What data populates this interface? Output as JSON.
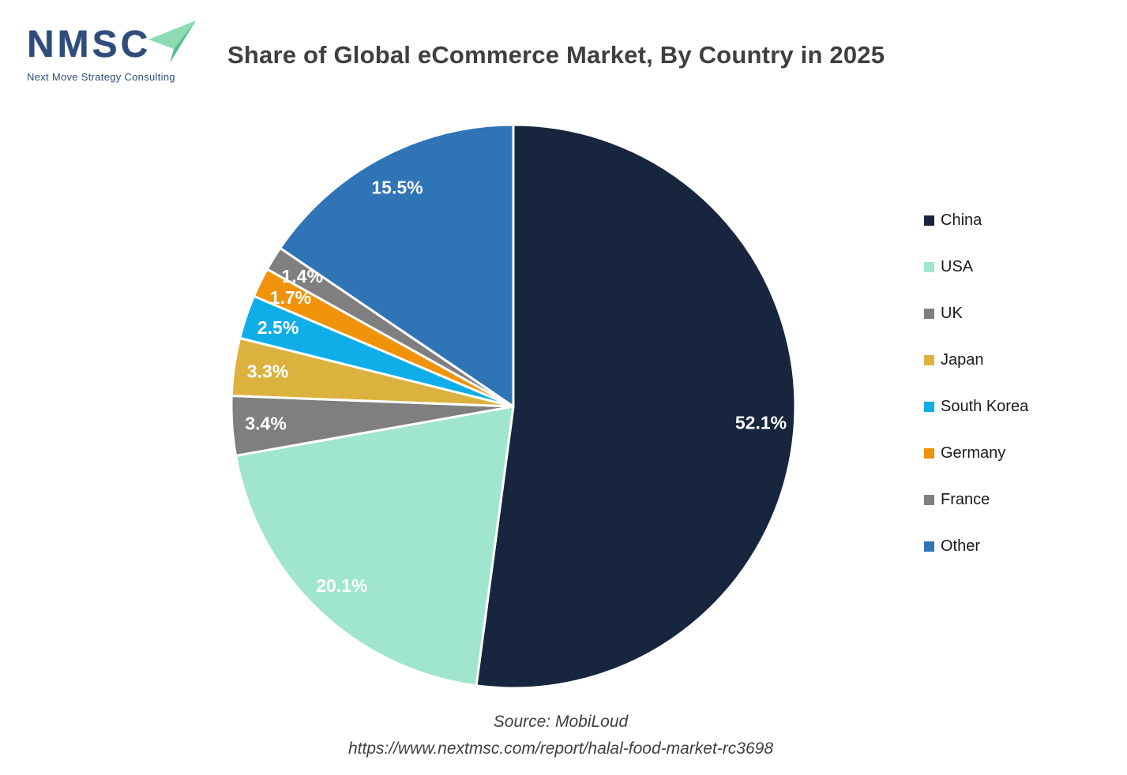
{
  "logo": {
    "acronym": "NMSC",
    "tagline": "Next Move Strategy Consulting",
    "brand_navy": "#2E4C7C",
    "arrow_green_light": "#8EDBB3",
    "arrow_green_dark": "#58BE91"
  },
  "header": {
    "title": "Share of Global eCommerce Market, By Country in 2025"
  },
  "source": {
    "line1": "Source: MobiLoud",
    "line2": "https://www.nextmsc.com/report/halal-food-market-rc3698"
  },
  "chart_data": {
    "type": "pie",
    "title": "Share of Global eCommerce Market, By Country in 2025",
    "units": "percent",
    "start_angle_deg": 0,
    "direction": "clockwise",
    "label_radius_ratio": 0.88,
    "slice_border_color": "#ffffff",
    "label_color": "#ffffff",
    "legend_position": "right",
    "segments": [
      {
        "label": "China",
        "value": 52.1,
        "display": "52.1%",
        "color": "#17263E"
      },
      {
        "label": "USA",
        "value": 20.1,
        "display": "20.1%",
        "color": "#A0E5CD"
      },
      {
        "label": "UK",
        "value": 3.4,
        "display": "3.4%",
        "color": "#7F7F7F"
      },
      {
        "label": "Japan",
        "value": 3.3,
        "display": "3.3%",
        "color": "#DCB23F"
      },
      {
        "label": "South Korea",
        "value": 2.5,
        "display": "2.5%",
        "color": "#0FAEE9"
      },
      {
        "label": "Germany",
        "value": 1.7,
        "display": "1.7%",
        "color": "#F0920A"
      },
      {
        "label": "France",
        "value": 1.4,
        "display": "1.4%",
        "color": "#7F7F7F"
      },
      {
        "label": "Other",
        "value": 15.5,
        "display": "15.5%",
        "color": "#2F74B5"
      }
    ]
  }
}
